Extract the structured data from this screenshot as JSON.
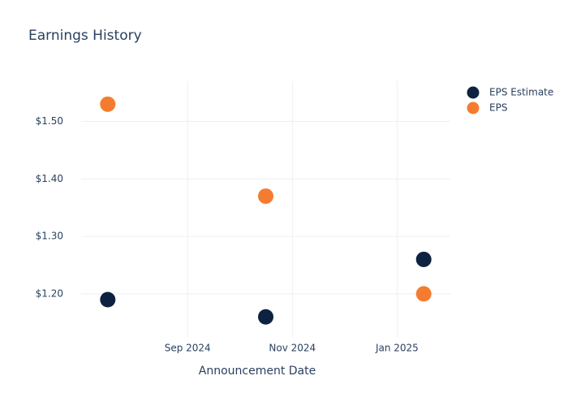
{
  "chart_data": {
    "type": "scatter",
    "title": "Earnings History",
    "x_label": "Announcement Date",
    "x": [
      "2024-07",
      "2024-10",
      "2025-01"
    ],
    "series": [
      {
        "name": "EPS Estimate",
        "color": "#0d2240",
        "values": [
          1.19,
          1.16,
          1.26
        ]
      },
      {
        "name": "EPS",
        "color": "#f47c30",
        "values": [
          1.53,
          1.37,
          1.2
        ]
      }
    ],
    "xlim": [
      "2024-07",
      "2025-02"
    ],
    "xticks": [
      {
        "value": "2024-09",
        "label": "Sep 2024"
      },
      {
        "value": "2024-11",
        "label": "Nov 2024"
      },
      {
        "value": "2025-01",
        "label": "Jan 2025"
      }
    ],
    "ylim": [
      1.125,
      1.57
    ],
    "yticks": [
      {
        "value": 1.2,
        "label": "$1.20"
      },
      {
        "value": 1.3,
        "label": "$1.30"
      },
      {
        "value": 1.4,
        "label": "$1.40"
      },
      {
        "value": 1.5,
        "label": "$1.50"
      }
    ],
    "grid": true,
    "legend": "top-right"
  }
}
